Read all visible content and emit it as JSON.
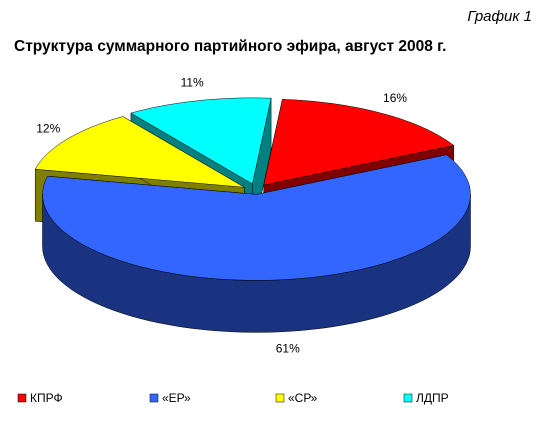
{
  "chart_data": {
    "type": "pie3d",
    "annotation": "График 1",
    "title": "Структура суммарного партийного эфира, август 2008 г.",
    "categories": [
      "КПРФ",
      "«ЕР»",
      "«СР»",
      "ЛДПР"
    ],
    "values": [
      16,
      61,
      12,
      11
    ],
    "value_labels": [
      "16%",
      "61%",
      "12%",
      "11%"
    ],
    "colors": [
      "#ff0000",
      "#3366ff",
      "#ffff00",
      "#00ffff"
    ],
    "legend": "bottom"
  }
}
